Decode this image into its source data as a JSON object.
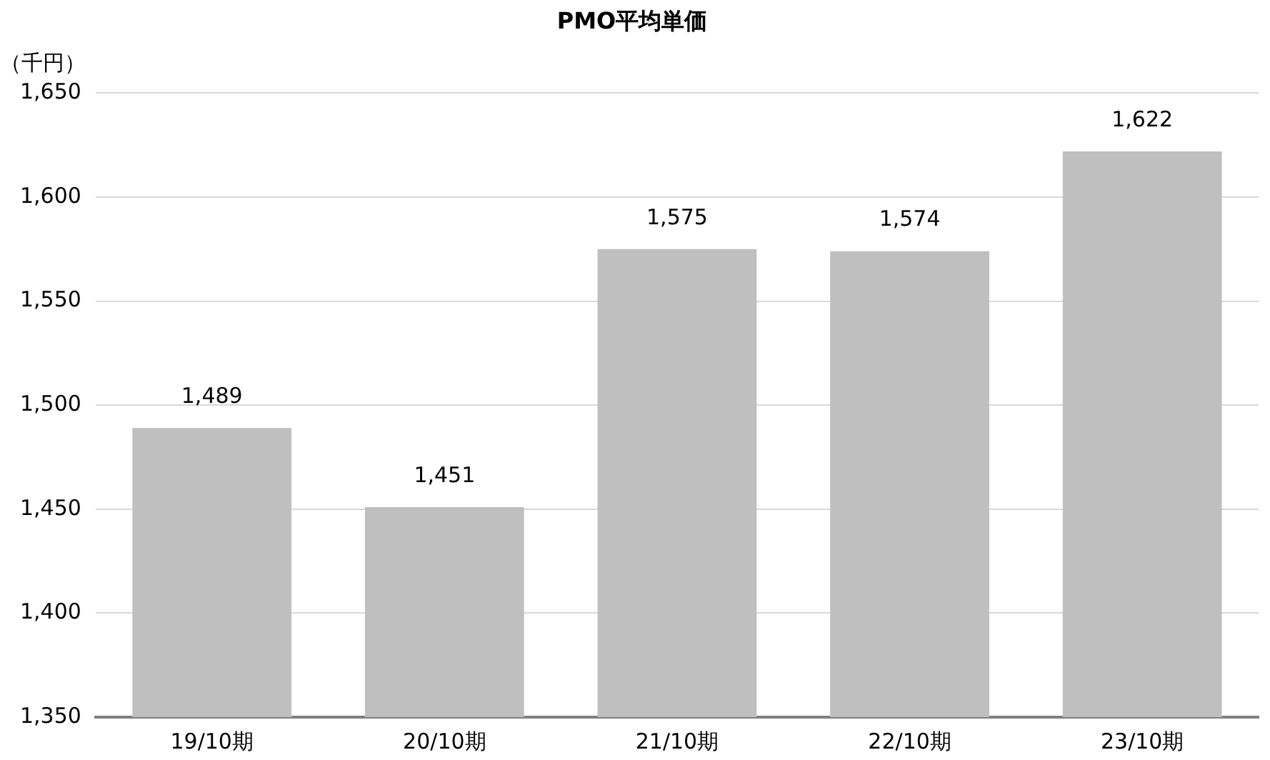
{
  "chart_data": {
    "type": "bar",
    "title": "PMO平均単価",
    "ylabel": "（千円）",
    "categories": [
      "19/10期",
      "20/10期",
      "21/10期",
      "22/10期",
      "23/10期"
    ],
    "values": [
      1489,
      1451,
      1575,
      1574,
      1622
    ],
    "color": "#bfbfbf",
    "ylim": [
      1350,
      1650
    ],
    "yticks": [
      {
        "value": 1350,
        "label": "1,350"
      },
      {
        "value": 1400,
        "label": "1,400"
      },
      {
        "value": 1450,
        "label": "1,450"
      },
      {
        "value": 1500,
        "label": "1,500"
      },
      {
        "value": 1550,
        "label": "1,550"
      },
      {
        "value": 1600,
        "label": "1,600"
      },
      {
        "value": 1650,
        "label": "1,650"
      }
    ],
    "value_labels": [
      "1,489",
      "1,451",
      "1,575",
      "1,574",
      "1,622"
    ],
    "grid": "y",
    "legend": false
  }
}
